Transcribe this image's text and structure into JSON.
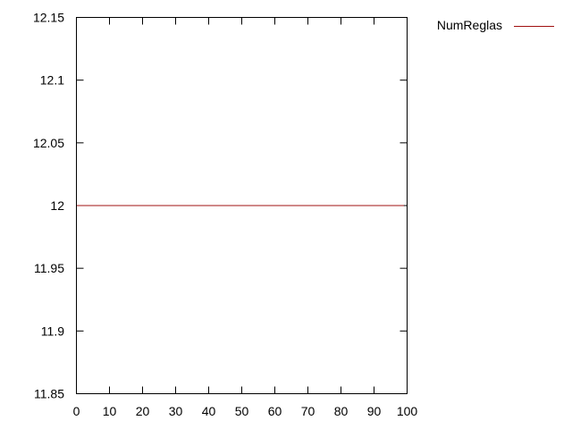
{
  "chart_data": {
    "type": "line",
    "xlim": [
      0,
      100
    ],
    "ylim": [
      11.85,
      12.15
    ],
    "x_ticks": [
      0,
      10,
      20,
      30,
      40,
      50,
      60,
      70,
      80,
      90,
      100
    ],
    "x_tick_labels": [
      "0",
      "10",
      "20",
      "30",
      "40",
      "50",
      "60",
      "70",
      "80",
      "90",
      "100"
    ],
    "y_ticks": [
      11.85,
      11.9,
      11.95,
      12,
      12.05,
      12.1,
      12.15
    ],
    "y_tick_labels": [
      "11.85",
      "11.9",
      "11.95",
      "12",
      "12.05",
      "12.1",
      "12.15"
    ],
    "grid": false,
    "legend_position": "top-right-outside",
    "series": [
      {
        "name": "NumReglas",
        "color": "#a01010",
        "x": [
          0,
          99
        ],
        "y": [
          12,
          12
        ]
      }
    ]
  }
}
